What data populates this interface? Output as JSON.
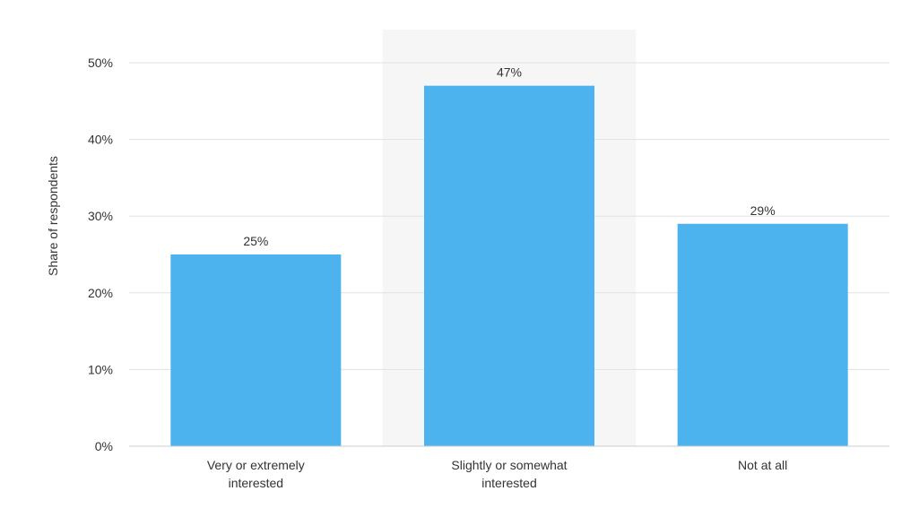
{
  "chart_data": {
    "type": "bar",
    "categories": [
      [
        "Very or extremely",
        "interested"
      ],
      [
        "Slightly or somewhat",
        "interested"
      ],
      [
        "Not at all"
      ]
    ],
    "values": [
      25,
      47,
      29
    ],
    "data_labels": [
      "25%",
      "47%",
      "29%"
    ],
    "ylabel": "Share of respondents",
    "ylim": [
      0,
      50
    ],
    "yticks": [
      {
        "value": 0,
        "label": "0%"
      },
      {
        "value": 10,
        "label": "10%"
      },
      {
        "value": 20,
        "label": "20%"
      },
      {
        "value": 30,
        "label": "30%"
      },
      {
        "value": 40,
        "label": "40%"
      },
      {
        "value": 50,
        "label": "50%"
      }
    ],
    "grid": true,
    "highlighted_category_index": 1,
    "colors": {
      "bar": "#4db3ee",
      "highlight_background": "#f6f6f6",
      "grid": "#e2e2e2",
      "axis": "#cccccc",
      "text": "#333333"
    }
  }
}
